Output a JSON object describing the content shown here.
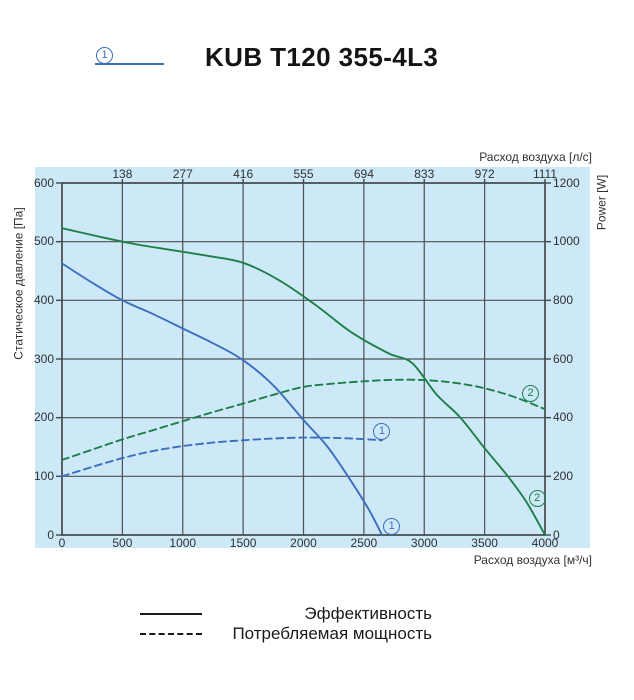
{
  "header": {
    "index_label": "1",
    "title": "KUB T120 355-4L3",
    "accent_color": "#3d6fbe"
  },
  "legend": {
    "items": [
      {
        "style": "solid",
        "label": "Эффективность"
      },
      {
        "style": "dashed",
        "label": "Потребляемая мощность"
      }
    ]
  },
  "chart_data": {
    "type": "line",
    "background_color": "#cde8f6",
    "grid_color": "#4d5055",
    "frame_color": "#43464a",
    "x_axis_bottom": {
      "label": "Расход воздуха [м³/ч]",
      "range": [
        0,
        4000
      ],
      "ticks": [
        0,
        500,
        1000,
        1500,
        2000,
        2500,
        3000,
        3500,
        4000
      ]
    },
    "x_axis_top": {
      "label": "Расход воздуха [л/с]",
      "ticks": [
        138,
        277,
        416,
        555,
        694,
        833,
        972,
        1111
      ]
    },
    "y_axis_left": {
      "label": "Статическое давление [Па]",
      "range": [
        0,
        600
      ],
      "ticks": [
        600,
        500,
        400,
        300,
        200,
        100,
        0
      ]
    },
    "y_axis_right": {
      "label": "Power [W]",
      "range": [
        0,
        1200
      ],
      "ticks": [
        1200,
        1000,
        800,
        600,
        400,
        200,
        0
      ]
    },
    "series": [
      {
        "id": "pressure-curve-1",
        "label": "1",
        "axis": "left",
        "style": "solid",
        "color": "#3d6fbe",
        "unit": "Па",
        "points": [
          [
            0,
            463
          ],
          [
            250,
            430
          ],
          [
            500,
            400
          ],
          [
            750,
            377
          ],
          [
            1000,
            352
          ],
          [
            1250,
            327
          ],
          [
            1500,
            298
          ],
          [
            1750,
            255
          ],
          [
            2000,
            196
          ],
          [
            2200,
            150
          ],
          [
            2400,
            90
          ],
          [
            2550,
            40
          ],
          [
            2650,
            0
          ]
        ]
      },
      {
        "id": "pressure-curve-2",
        "label": "2",
        "axis": "left",
        "style": "solid",
        "color": "#1e8048",
        "unit": "Па",
        "points": [
          [
            0,
            523
          ],
          [
            300,
            509
          ],
          [
            600,
            496
          ],
          [
            900,
            486
          ],
          [
            1200,
            476
          ],
          [
            1500,
            464
          ],
          [
            1800,
            434
          ],
          [
            2100,
            392
          ],
          [
            2400,
            345
          ],
          [
            2700,
            310
          ],
          [
            2900,
            293
          ],
          [
            3100,
            240
          ],
          [
            3300,
            200
          ],
          [
            3500,
            148
          ],
          [
            3700,
            98
          ],
          [
            3850,
            55
          ],
          [
            4000,
            0
          ]
        ]
      },
      {
        "id": "power-curve-1",
        "label": "1",
        "axis": "right",
        "style": "dashed",
        "color": "#3d6fbe",
        "unit": "W",
        "points": [
          [
            0,
            200
          ],
          [
            250,
            232
          ],
          [
            500,
            262
          ],
          [
            750,
            286
          ],
          [
            1000,
            303
          ],
          [
            1250,
            315
          ],
          [
            1500,
            323
          ],
          [
            1750,
            329
          ],
          [
            2000,
            332
          ],
          [
            2250,
            331
          ],
          [
            2450,
            328
          ],
          [
            2650,
            323
          ]
        ]
      },
      {
        "id": "power-curve-2",
        "label": "2",
        "axis": "right",
        "style": "dashed",
        "color": "#1e8048",
        "unit": "W",
        "points": [
          [
            0,
            256
          ],
          [
            250,
            291
          ],
          [
            500,
            326
          ],
          [
            750,
            357
          ],
          [
            1000,
            388
          ],
          [
            1250,
            419
          ],
          [
            1500,
            448
          ],
          [
            1750,
            478
          ],
          [
            2000,
            505
          ],
          [
            2250,
            516
          ],
          [
            2500,
            524
          ],
          [
            2750,
            529
          ],
          [
            3000,
            528
          ],
          [
            3250,
            519
          ],
          [
            3500,
            500
          ],
          [
            3750,
            470
          ],
          [
            4000,
            429
          ]
        ]
      }
    ],
    "annotations": [
      {
        "label": "1",
        "axis": "left",
        "x": 2730,
        "y": 15,
        "color": "#3d6fbe"
      },
      {
        "label": "1",
        "axis": "right",
        "x": 2650,
        "y": 352,
        "color": "#3d6fbe"
      },
      {
        "label": "2",
        "axis": "right",
        "x": 3880,
        "y": 482,
        "color": "#1e8048"
      },
      {
        "label": "2",
        "axis": "left",
        "x": 3935,
        "y": 62,
        "color": "#1e8048"
      }
    ]
  }
}
